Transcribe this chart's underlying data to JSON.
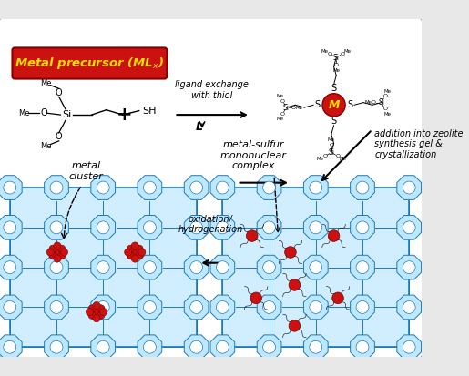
{
  "bg_color": "#e8e8e8",
  "white": "#ffffff",
  "title_box_color": "#cc1111",
  "title_text_color": "#ffdd00",
  "zeolite_line_color": "#1a7abf",
  "zeolite_fill_color": "#d0eeff",
  "zeolite_oct_color": "#bde8ff",
  "metal_color": "#cc1111",
  "metal_text_color": "#ffdd00",
  "label_ligand_exchange": "ligand exchange\nwith thiol",
  "label_L": "L",
  "label_addition": "addition into zeolite\nsynthesis gel &\ncrystallization",
  "label_oxidation": "oxidation/\nhydrogenation",
  "label_metal_sulfur": "metal-sulfur\nmononuclear\ncomplex",
  "label_metal_cluster": "metal\ncluster",
  "font_size_labels": 8,
  "font_size_title": 9.5
}
